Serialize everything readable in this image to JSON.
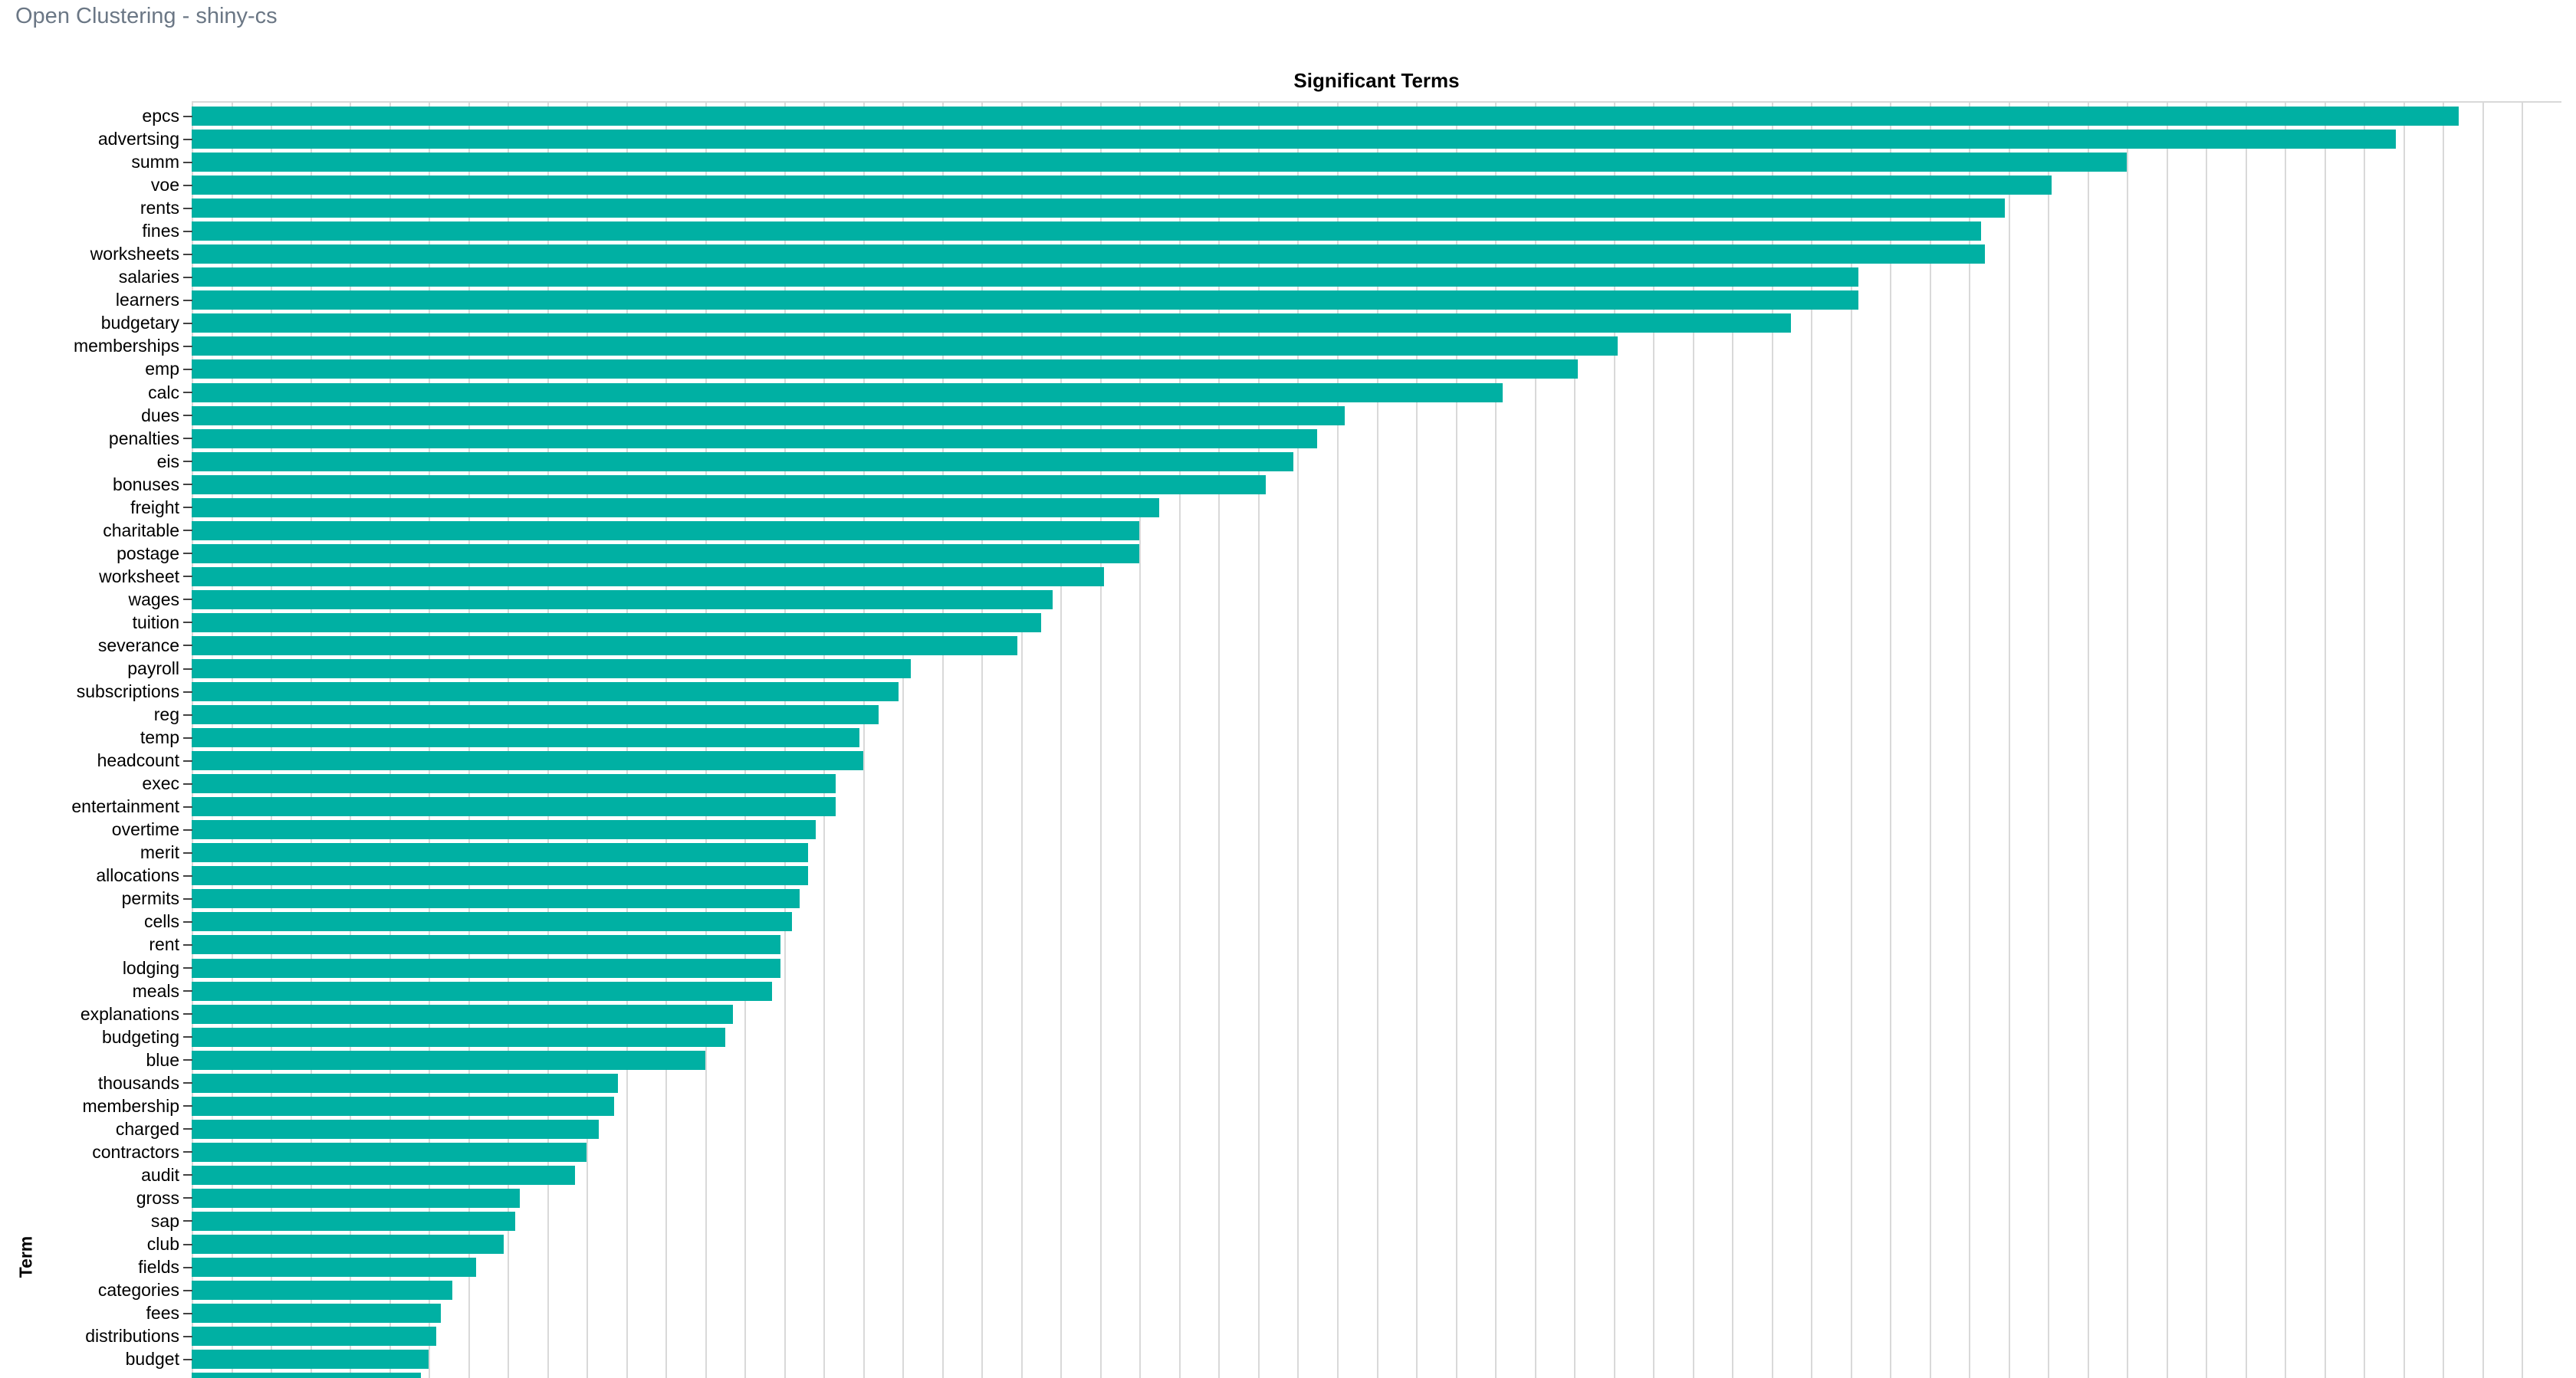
{
  "page": {
    "header_title": "Open Clustering - shiny-cs"
  },
  "chart_data": {
    "type": "bar",
    "orientation": "horizontal",
    "title": "Significant Terms",
    "xlabel": "",
    "ylabel": "Term",
    "grid": true,
    "x_tick_labels_visible": false,
    "xlim": [
      0,
      60
    ],
    "gridline_spacing_units": 1,
    "note": "Chart is cut off at the bottom of the viewport; the x-axis and the label of the last (56th) partially-visible bar are not shown.",
    "categories": [
      "epcs",
      "advertsing",
      "summ",
      "voe",
      "rents",
      "fines",
      "worksheets",
      "salaries",
      "learners",
      "budgetary",
      "memberships",
      "emp",
      "calc",
      "dues",
      "penalties",
      "eis",
      "bonuses",
      "freight",
      "charitable",
      "postage",
      "worksheet",
      "wages",
      "tuition",
      "severance",
      "payroll",
      "subscriptions",
      "reg",
      "temp",
      "headcount",
      "exec",
      "entertainment",
      "overtime",
      "merit",
      "allocations",
      "permits",
      "cells",
      "rent",
      "lodging",
      "meals",
      "explanations",
      "budgeting",
      "blue",
      "thousands",
      "membership",
      "charged",
      "contractors",
      "audit",
      "gross",
      "sap",
      "club",
      "fields",
      "categories",
      "fees",
      "distributions",
      "budget",
      ""
    ],
    "values": [
      57.4,
      55.8,
      49.0,
      47.1,
      45.9,
      45.3,
      45.4,
      42.2,
      42.2,
      40.5,
      36.1,
      35.1,
      33.2,
      29.2,
      28.5,
      27.9,
      27.2,
      24.5,
      24.0,
      24.0,
      23.1,
      21.8,
      21.5,
      20.9,
      18.2,
      17.9,
      17.4,
      16.9,
      17.0,
      16.3,
      16.3,
      15.8,
      15.6,
      15.6,
      15.4,
      15.2,
      14.9,
      14.9,
      14.7,
      13.7,
      13.5,
      13.0,
      10.8,
      10.7,
      10.3,
      10.0,
      9.7,
      8.3,
      8.2,
      7.9,
      7.2,
      6.6,
      6.3,
      6.2,
      6.0,
      5.8
    ],
    "colors": {
      "bar": "#00b0a3",
      "gridline": "#d9d9d9",
      "tick": "#444444",
      "title_text": "#000000",
      "label_text": "#000000",
      "header_text": "#6b7785",
      "background": "#ffffff"
    },
    "legend": null
  }
}
